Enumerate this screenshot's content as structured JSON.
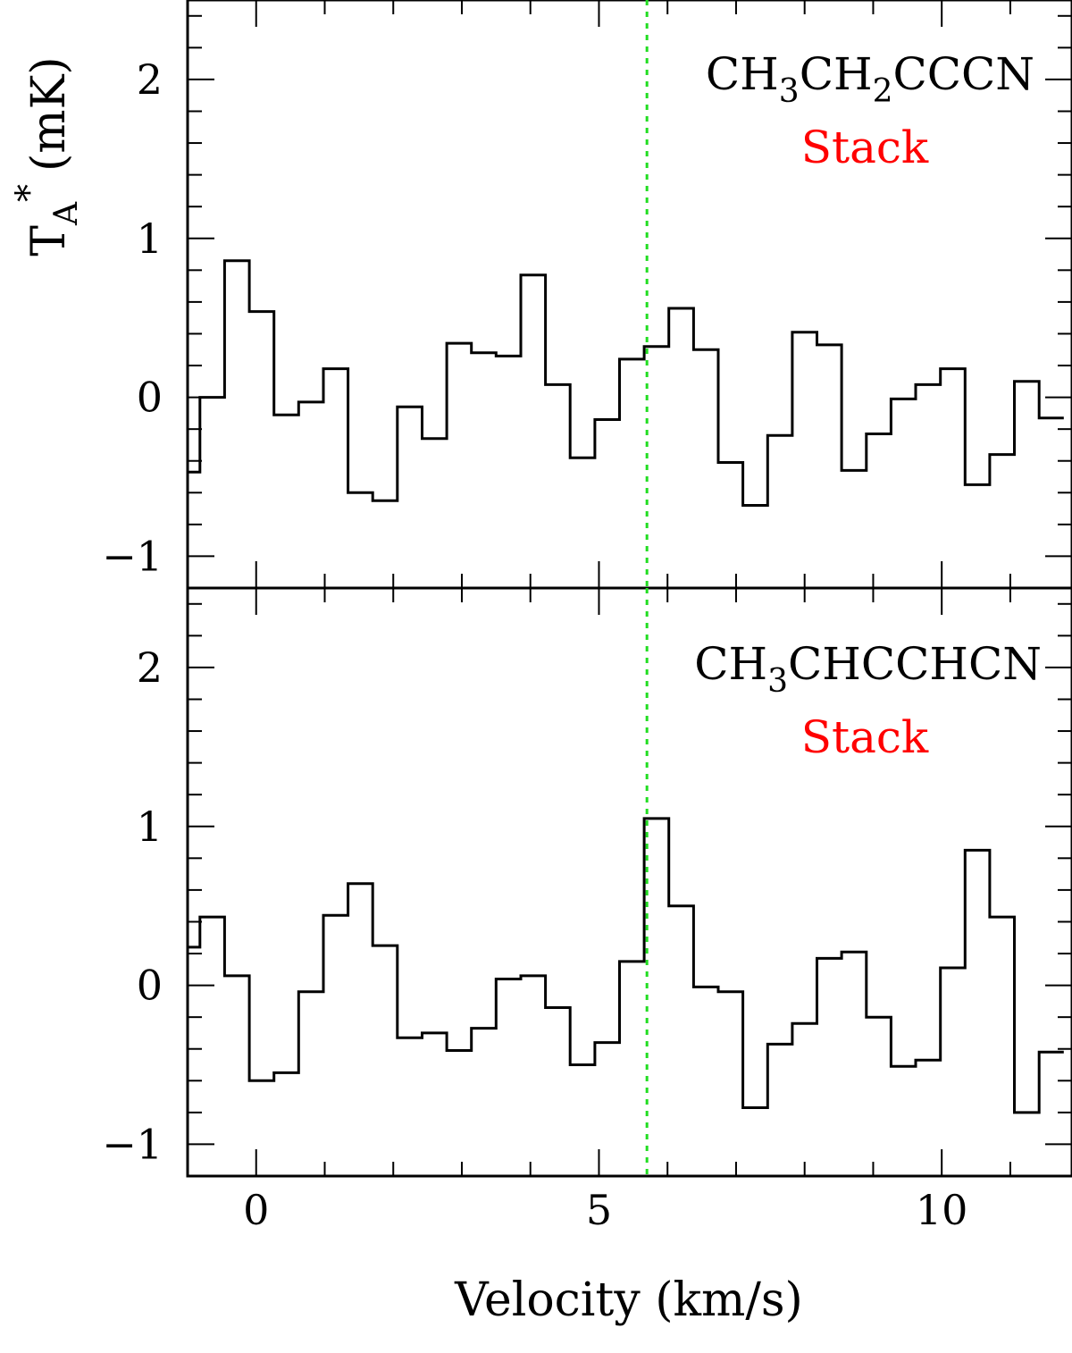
{
  "figure": {
    "xlabel": "Velocity (km/s)",
    "ylabel": "T",
    "ylabel_sub": "A",
    "ylabel_sup": "*",
    "ylabel_unit": "(mK)",
    "vline_color": "#22dd22",
    "label_color": "#ff0000",
    "line_color": "#000000"
  },
  "chart_data": [
    {
      "type": "line",
      "drawstyle": "steps-mid",
      "xlabel": "Velocity (km/s)",
      "ylabel": "TA* (mK)",
      "xlim": [
        -1.0,
        11.9
      ],
      "ylim": [
        -1.2,
        2.5
      ],
      "xticks": [
        0,
        5,
        10
      ],
      "yticks": [
        -1,
        0,
        1,
        2
      ],
      "vline_x": 5.7,
      "molecule": {
        "base1": "CH",
        "sub1": "3",
        "base2": "CH",
        "sub2": "2",
        "base3": "CCCN"
      },
      "stack_label": "Stack",
      "x": [
        -1.0,
        -0.64,
        -0.28,
        0.08,
        0.44,
        0.8,
        1.16,
        1.52,
        1.88,
        2.24,
        2.6,
        2.96,
        3.32,
        3.68,
        4.04,
        4.4,
        4.76,
        5.12,
        5.48,
        5.84,
        6.2,
        6.56,
        6.92,
        7.28,
        7.64,
        8.0,
        8.36,
        8.72,
        9.08,
        9.44,
        9.8,
        10.16,
        10.52,
        10.88,
        11.24,
        11.6
      ],
      "y": [
        -0.47,
        0.0,
        0.86,
        0.54,
        -0.11,
        -0.03,
        0.18,
        -0.6,
        -0.65,
        -0.06,
        -0.26,
        0.34,
        0.28,
        0.26,
        0.77,
        0.08,
        -0.38,
        -0.14,
        0.24,
        0.32,
        0.56,
        0.3,
        -0.41,
        -0.68,
        -0.24,
        0.41,
        0.33,
        -0.46,
        -0.23,
        -0.01,
        0.08,
        0.18,
        -0.55,
        -0.36,
        0.1,
        -0.13
      ]
    },
    {
      "type": "line",
      "drawstyle": "steps-mid",
      "xlabel": "Velocity (km/s)",
      "ylabel": "TA* (mK)",
      "xlim": [
        -1.0,
        11.9
      ],
      "ylim": [
        -1.2,
        2.5
      ],
      "xticks": [
        0,
        5,
        10
      ],
      "yticks": [
        -1,
        0,
        1,
        2
      ],
      "vline_x": 5.7,
      "molecule": {
        "base1": "CH",
        "sub1": "3",
        "base2": "CHCCHCN"
      },
      "stack_label": "Stack",
      "x": [
        -1.0,
        -0.64,
        -0.28,
        0.08,
        0.44,
        0.8,
        1.16,
        1.52,
        1.88,
        2.24,
        2.6,
        2.96,
        3.32,
        3.68,
        4.04,
        4.4,
        4.76,
        5.12,
        5.48,
        5.84,
        6.2,
        6.56,
        6.92,
        7.28,
        7.64,
        8.0,
        8.36,
        8.72,
        9.08,
        9.44,
        9.8,
        10.16,
        10.52,
        10.88,
        11.24,
        11.6
      ],
      "y": [
        0.24,
        0.43,
        0.06,
        -0.6,
        -0.55,
        -0.04,
        0.44,
        0.64,
        0.25,
        -0.33,
        -0.3,
        -0.41,
        -0.27,
        0.04,
        0.06,
        -0.14,
        -0.5,
        -0.36,
        0.15,
        1.05,
        0.5,
        -0.01,
        -0.04,
        -0.77,
        -0.37,
        -0.24,
        0.17,
        0.21,
        -0.2,
        -0.51,
        -0.47,
        0.11,
        0.85,
        0.43,
        -0.8,
        -0.42
      ]
    }
  ]
}
